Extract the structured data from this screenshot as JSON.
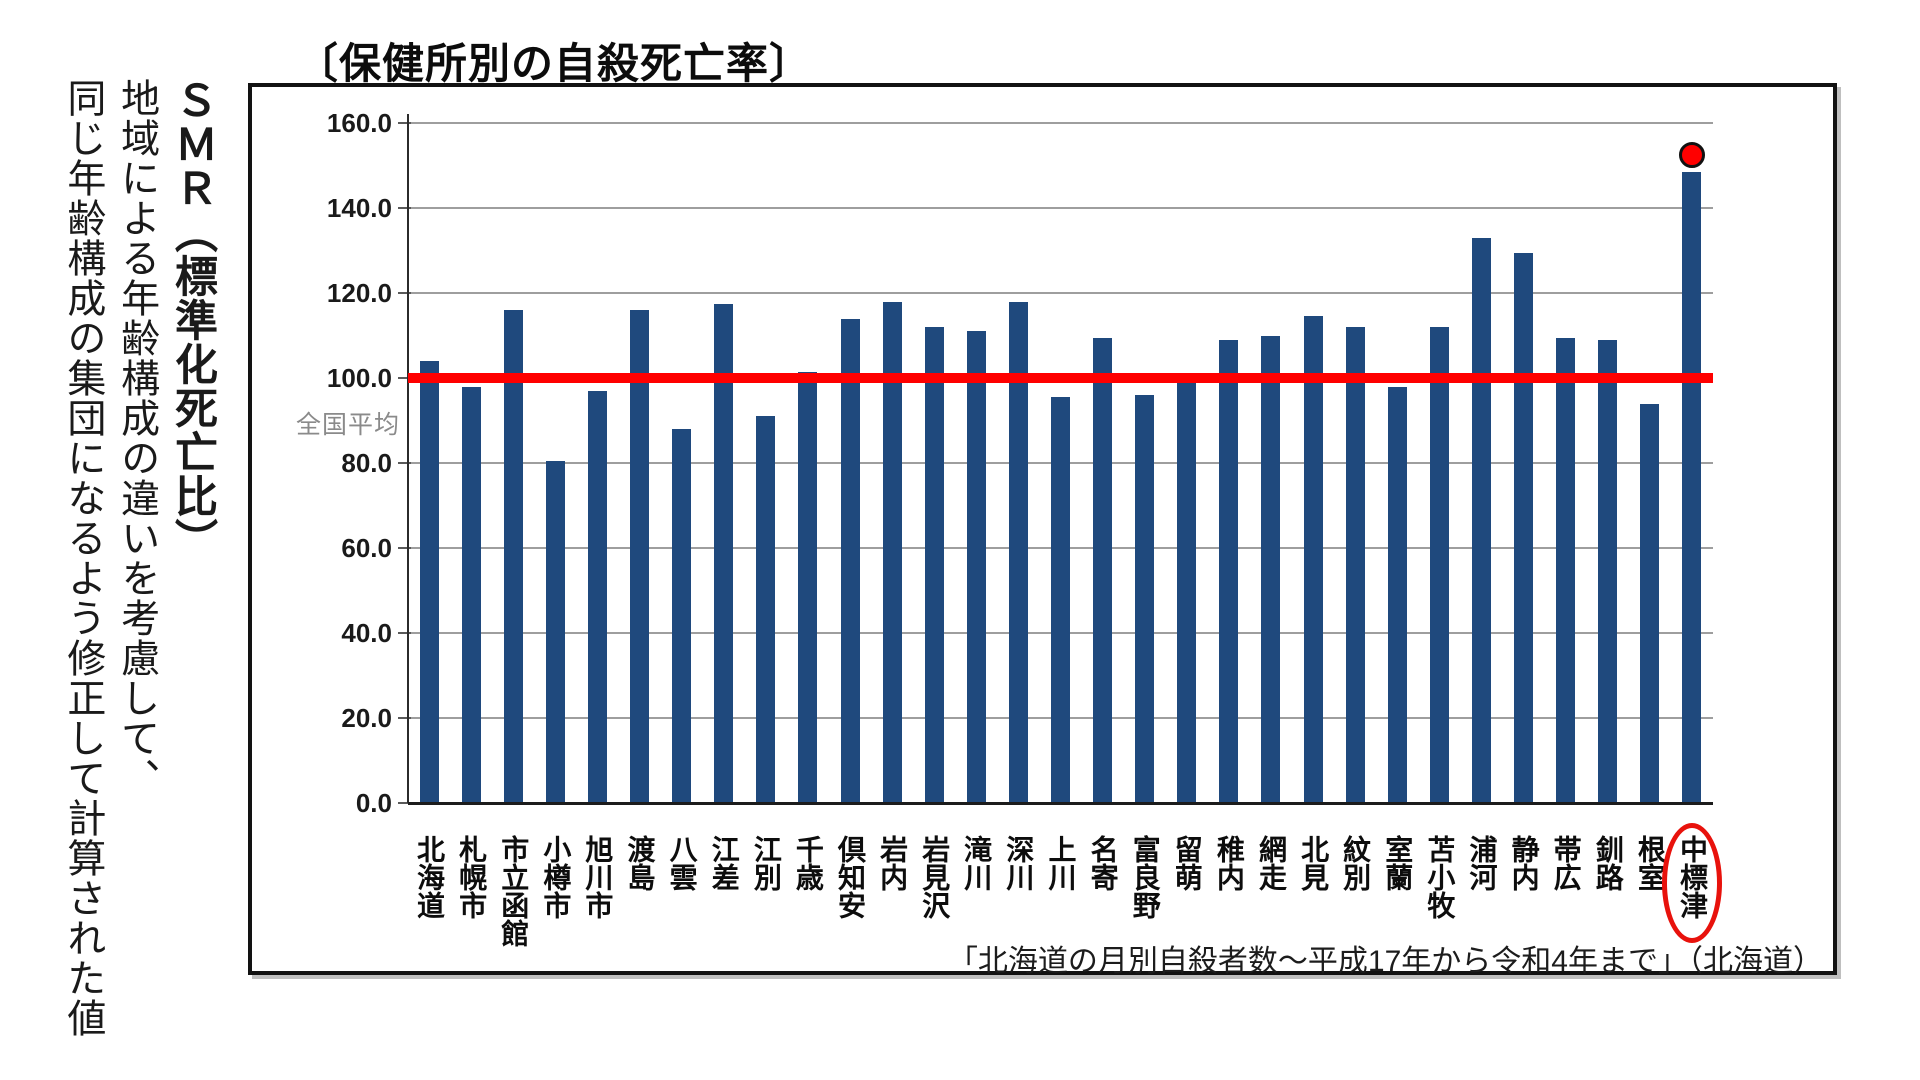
{
  "sidebar": {
    "line1": "ＳＭＲ（標準化死亡比）",
    "line2": "地域による年齢構成の違いを考慮して、",
    "line3": "同じ年齢構成の集団になるよう修正して計算された値"
  },
  "chart": {
    "title": "〔保健所別の自殺死亡率〕",
    "national_avg_label": "全国平均",
    "source": "「北海道の月別自殺者数～平成17年から令和4年まで」（北海道）",
    "colors": {
      "bar": "#1F497D",
      "reference_line": "#FF0000",
      "highlight_marker": "#FF0000",
      "gridline": "#9E9E9E",
      "axis": "#1C1C1C",
      "avg_label_text": "#8A8A8A"
    }
  },
  "chart_data": {
    "type": "bar",
    "title": "〔保健所別の自殺死亡率〕",
    "xlabel": "",
    "ylabel": "SMR（標準化死亡比）",
    "categories": [
      "北海道",
      "札幌市",
      "市立函館",
      "小樽市",
      "旭川市",
      "渡島",
      "八雲",
      "江差",
      "江別",
      "千歳",
      "倶知安",
      "岩内",
      "岩見沢",
      "滝川",
      "深川",
      "上川",
      "名寄",
      "富良野",
      "留萌",
      "稚内",
      "網走",
      "北見",
      "紋別",
      "室蘭",
      "苫小牧",
      "浦河",
      "静内",
      "帯広",
      "釧路",
      "根室",
      "中標津"
    ],
    "values": [
      104,
      98,
      116,
      80.5,
      97,
      116,
      88,
      117.5,
      91,
      101.5,
      114,
      118,
      112,
      111,
      118,
      95.5,
      109.5,
      96,
      99.5,
      109,
      110,
      114.5,
      112,
      98,
      112,
      133,
      129.5,
      109.5,
      109,
      94,
      148.5
    ],
    "ylim": [
      0,
      160
    ],
    "ytick_step": 20,
    "ytick_labels": [
      "0.0",
      "20.0",
      "40.0",
      "60.0",
      "80.0",
      "100.0",
      "120.0",
      "140.0",
      "160.0"
    ],
    "grid": true,
    "legend": false,
    "reference_line": {
      "value": 100,
      "label": "全国平均",
      "color": "#FF0000"
    },
    "highlight": {
      "category": "中標津",
      "marker": "red-dot",
      "marker_value": 152.5,
      "label_circled": true
    },
    "source": "「北海道の月別自殺者数～平成17年から令和4年まで」（北海道）"
  }
}
